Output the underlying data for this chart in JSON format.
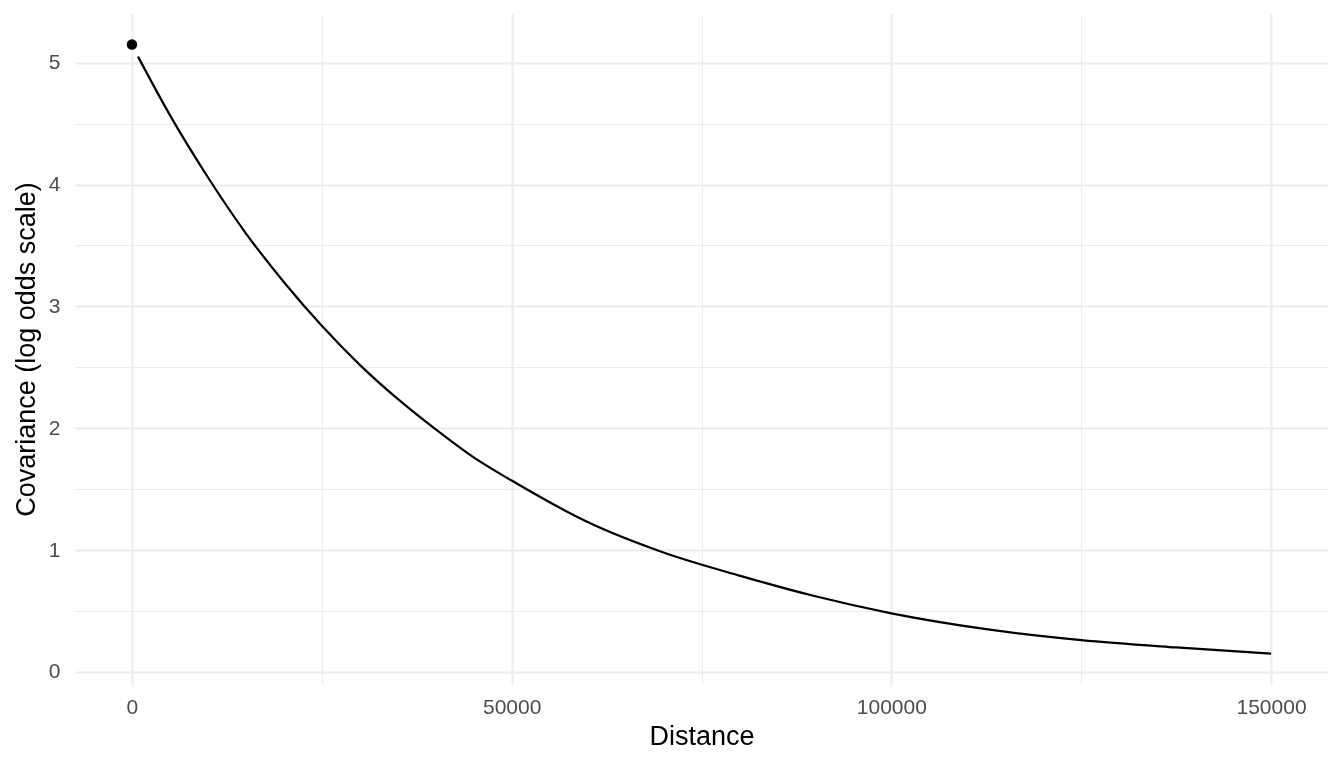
{
  "chart_data": {
    "type": "line",
    "xlabel": "Distance",
    "ylabel": "Covariance (log odds scale)",
    "xlim": [
      -7500,
      157500
    ],
    "ylim": [
      -0.1,
      5.4
    ],
    "xticks": [
      0,
      {
        "value": 25000,
        "label": null
      },
      50000,
      {
        "value": 75000,
        "label": null
      },
      100000,
      {
        "value": 125000,
        "label": null
      },
      150000
    ],
    "yticks": [
      0,
      {
        "value": 0.5,
        "label": null
      },
      1,
      {
        "value": 1.5,
        "label": null
      },
      2,
      {
        "value": 2.5,
        "label": null
      },
      3,
      {
        "value": 3.5,
        "label": null
      },
      4,
      {
        "value": 4.5,
        "label": null
      },
      5
    ],
    "grid": true,
    "series": [
      {
        "color": "#000000",
        "x": [
          800,
          5000,
          10000,
          15000,
          20000,
          25000,
          30000,
          35000,
          40000,
          45000,
          50000,
          60000,
          70000,
          80000,
          90000,
          100000,
          112500,
          125000,
          137500,
          150000
        ],
        "values": [
          5.05,
          4.57,
          4.06,
          3.6,
          3.2,
          2.84,
          2.52,
          2.24,
          1.99,
          1.76,
          1.57,
          1.23,
          0.98,
          0.79,
          0.62,
          0.48,
          0.35,
          0.26,
          0.2,
          0.15
        ]
      },
      {
        "type": "scatter",
        "color": "#000000",
        "x": [
          0
        ],
        "values": [
          5.15
        ]
      }
    ]
  }
}
